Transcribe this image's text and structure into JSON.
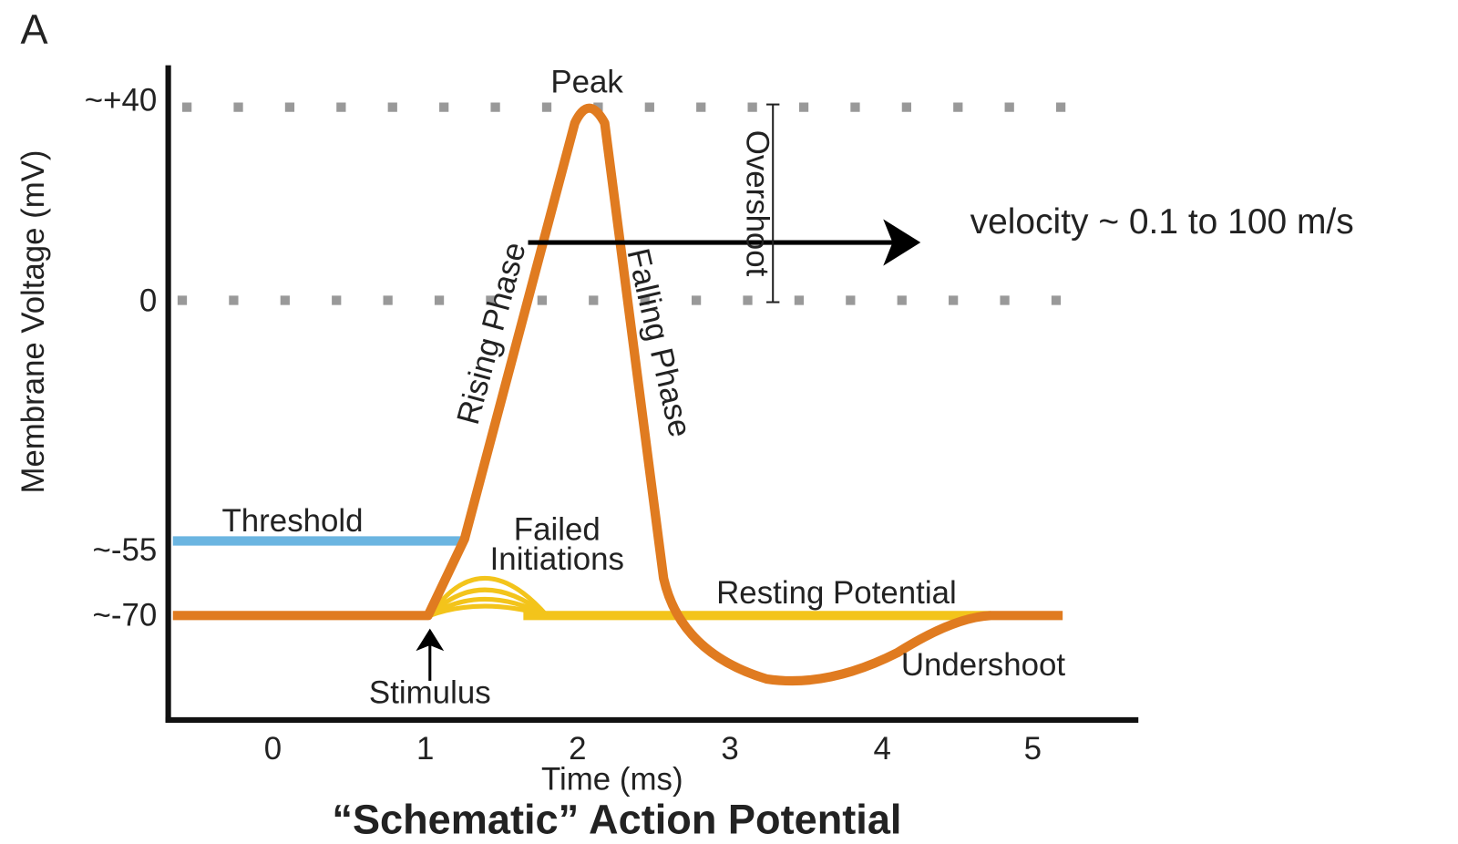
{
  "panel_letter": "A",
  "y_axis": {
    "label": "Membrane Voltage (mV)",
    "ticks": [
      "~+40",
      "0",
      "~-55",
      "~-70"
    ]
  },
  "x_axis": {
    "label": "Time (ms)",
    "ticks": [
      "0",
      "1",
      "2",
      "3",
      "4",
      "5"
    ]
  },
  "title": "“Schematic” Action Potential",
  "labels": {
    "peak": "Peak",
    "rising": "Rising Phase",
    "falling": "Falling Phase",
    "overshoot": "Overshoot",
    "threshold": "Threshold",
    "failed": [
      "Failed",
      "Initiations"
    ],
    "resting": "Resting Potential",
    "undershoot": "Undershoot",
    "stimulus": "Stimulus"
  },
  "annotation": "velocity ~ 0.1 to 100 m/s"
}
